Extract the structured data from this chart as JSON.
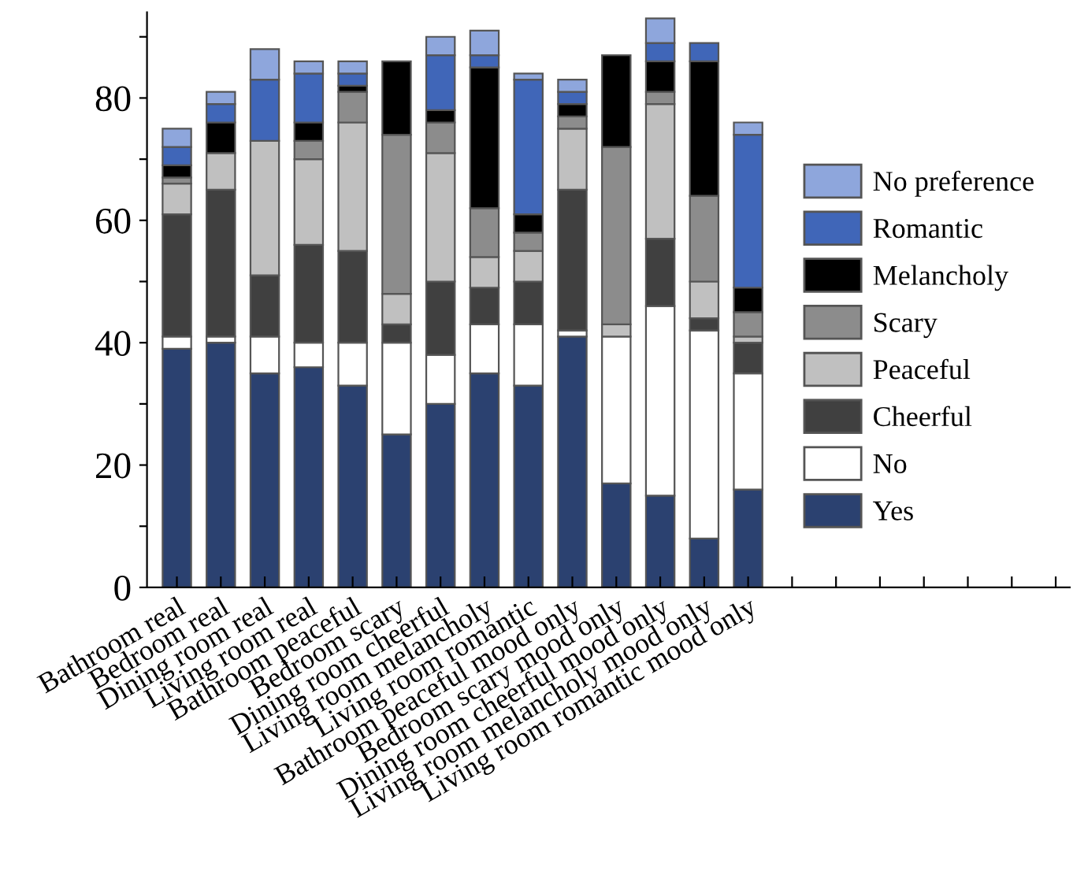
{
  "chart_data": {
    "type": "bar",
    "stacked": true,
    "categories": [
      "Bathroom real",
      "Bedroom real",
      "Dining room real",
      "Living room real",
      "Bathroom peaceful",
      "Bedroom scary",
      "Dining room cheerful",
      "Living room melancholy",
      "Living room romantic",
      "Bathroom peaceful mood only",
      "Bedroom scary mood only",
      "Dining room cheerful mood only",
      "Living room melancholy mood only",
      "Living room romantic mood only",
      null,
      null,
      null,
      null,
      null,
      null,
      null
    ],
    "series": [
      {
        "name": "Yes",
        "color": "#2b4170",
        "values": [
          39,
          40,
          35,
          36,
          33,
          25,
          30,
          35,
          33,
          41,
          17,
          15,
          8,
          16,
          null,
          null,
          null,
          null,
          null,
          null,
          null
        ]
      },
      {
        "name": "No",
        "color": "#ffffff",
        "values": [
          2,
          1,
          6,
          4,
          7,
          15,
          8,
          8,
          10,
          1,
          24,
          31,
          34,
          19,
          null,
          null,
          null,
          null,
          null,
          null,
          null
        ]
      },
      {
        "name": "Cheerful",
        "color": "#404040",
        "values": [
          20,
          24,
          10,
          16,
          15,
          3,
          12,
          6,
          7,
          23,
          0,
          11,
          2,
          5,
          null,
          null,
          null,
          null,
          null,
          null,
          null
        ]
      },
      {
        "name": "Peaceful",
        "color": "#c0c0c0",
        "values": [
          5,
          6,
          22,
          14,
          21,
          5,
          21,
          5,
          5,
          10,
          2,
          22,
          6,
          1,
          null,
          null,
          null,
          null,
          null,
          null,
          null
        ]
      },
      {
        "name": "Scary",
        "color": "#8c8c8c",
        "values": [
          1,
          0,
          0,
          3,
          5,
          26,
          5,
          8,
          3,
          2,
          29,
          2,
          14,
          4,
          null,
          null,
          null,
          null,
          null,
          null,
          null
        ]
      },
      {
        "name": "Melancholy",
        "color": "#000000",
        "values": [
          2,
          5,
          0,
          3,
          1,
          12,
          2,
          23,
          3,
          2,
          15,
          5,
          22,
          4,
          null,
          null,
          null,
          null,
          null,
          null,
          null
        ]
      },
      {
        "name": "Romantic",
        "color": "#4066b8",
        "values": [
          3,
          3,
          10,
          8,
          2,
          0,
          9,
          2,
          22,
          2,
          0,
          3,
          3,
          25,
          null,
          null,
          null,
          null,
          null,
          null,
          null
        ]
      },
      {
        "name": "No preference",
        "color": "#8ea6dc",
        "values": [
          3,
          2,
          5,
          2,
          2,
          0,
          3,
          4,
          1,
          2,
          0,
          4,
          0,
          2,
          null,
          null,
          null,
          null,
          null,
          null,
          null
        ]
      }
    ],
    "ylim": [
      0,
      94
    ],
    "yticks": [
      0,
      {
        "value": 10,
        "label": null
      },
      20,
      {
        "value": 30,
        "label": null
      },
      40,
      {
        "value": 50,
        "label": null
      },
      60,
      {
        "value": 70,
        "label": null
      },
      80,
      {
        "value": 90,
        "label": null
      }
    ],
    "legend": "right",
    "grid": false
  }
}
